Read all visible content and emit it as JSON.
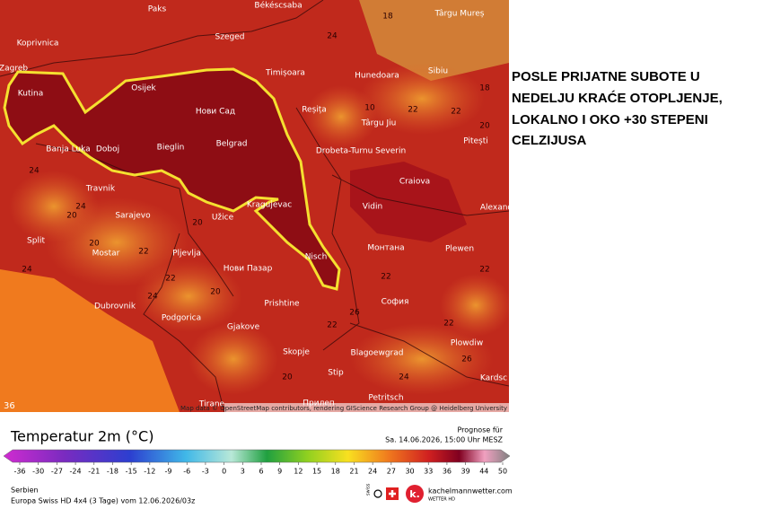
{
  "map": {
    "cities": [
      "Paks",
      "Békéscsaba",
      "Szeged",
      "Koprivnica",
      "Zagreb",
      "Kutina",
      "Osijek",
      "Нови Сад",
      "Timișoara",
      "Hunedoara",
      "Sibiu",
      "Târgu Mureș",
      "Reșița",
      "Târgu Jiu",
      "Drobeta-Turnu Severin",
      "Pitești",
      "Craiova",
      "Banja Luka",
      "Doboj",
      "Bieglin",
      "Belgrad",
      "Travnik",
      "Sarajevo",
      "Užice",
      "Kragujevac",
      "Vidin",
      "Alexand",
      "Split",
      "Mostar",
      "Pljevlja",
      "Нови Пазар",
      "Nisch",
      "Монтана",
      "Plewen",
      "Dubrovnik",
      "Podgorica",
      "Prishtine",
      "София",
      "Gjakove",
      "Skopje",
      "Blagoewgrad",
      "Plowdiw",
      "Stip",
      "Petritsch",
      "Tirane",
      "Прилеп",
      "Kardsc"
    ],
    "temperature_labels": [
      "18",
      "18",
      "22",
      "20",
      "24",
      "22",
      "20",
      "24",
      "22",
      "20",
      "22",
      "20",
      "24",
      "22",
      "26",
      "22",
      "24",
      "20",
      "22",
      "24",
      "26",
      "22",
      "20",
      "24",
      "10"
    ],
    "corner_label": "36",
    "attribution": "Map data © OpenStreetMap contributors, rendering GIScience Research Group @ Heidelberg University"
  },
  "headline": [
    "POSLE PRIJATNE SUBOTE U",
    "NEDELJU KRAĆE OTOPLJENJE,",
    "LOKALNO I OKO +30 STEPENI",
    "CELZIJUSA"
  ],
  "legend": {
    "title": "Temperatur 2m (°C)",
    "ticks": [
      -36,
      -30,
      -27,
      -24,
      -21,
      -18,
      -15,
      -12,
      -9,
      -6,
      -3,
      0,
      3,
      6,
      9,
      12,
      15,
      18,
      21,
      24,
      27,
      30,
      33,
      36,
      39,
      44,
      50
    ]
  },
  "forecast": {
    "label": "Prognose für",
    "time": "Sa. 14.06.2026, 15:00 Uhr MESZ"
  },
  "footer": {
    "region": "Serbien",
    "model": "Europa Swiss HD 4x4 (3 Tage) vom 12.06.2026/03z"
  },
  "brand": {
    "name": "kachelmannwetter.com",
    "sub": "WETTER HD",
    "side": "swiss"
  }
}
